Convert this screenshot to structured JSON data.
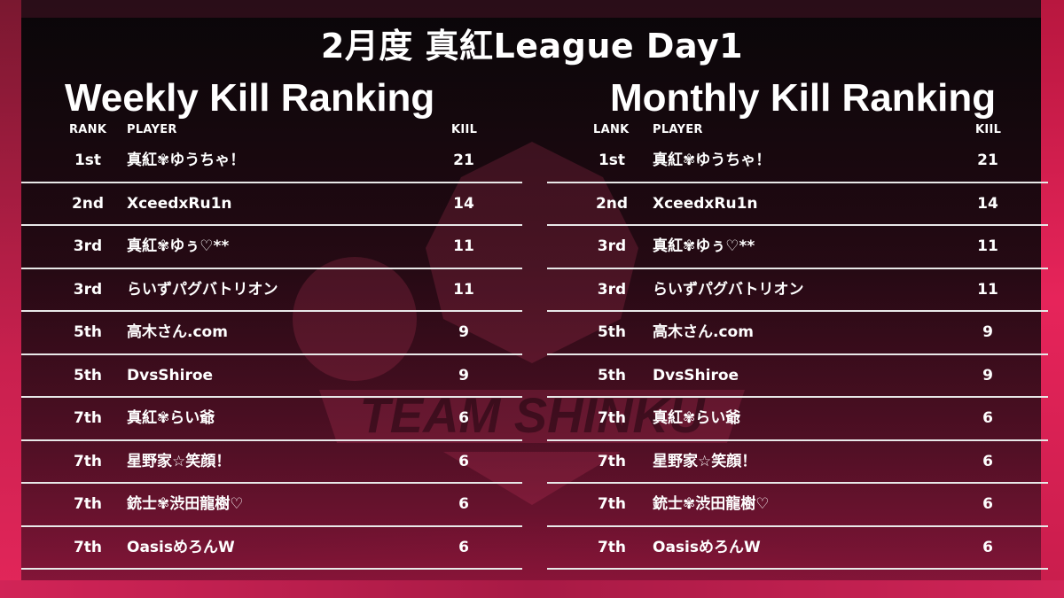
{
  "title": "2月度 真紅League Day1",
  "weekly": {
    "title": "Weekly Kill Ranking",
    "headers": {
      "rank": "RANK",
      "player": "PLAYER",
      "kill": "KIIL"
    },
    "rows": [
      {
        "rank": "1st",
        "player": "真紅✾ゆうちゃ！",
        "kill": "21"
      },
      {
        "rank": "2nd",
        "player": "XceedxRu1n",
        "kill": "14"
      },
      {
        "rank": "3rd",
        "player": "真紅✾ゆぅ♡**",
        "kill": "11"
      },
      {
        "rank": "3rd",
        "player": "らいずパグバトリオン",
        "kill": "11"
      },
      {
        "rank": "5th",
        "player": "高木さん.com",
        "kill": "9"
      },
      {
        "rank": "5th",
        "player": "DvsShiroe",
        "kill": "9"
      },
      {
        "rank": "7th",
        "player": "真紅✾らい爺",
        "kill": "6"
      },
      {
        "rank": "7th",
        "player": "星野家☆笑顔！",
        "kill": "6"
      },
      {
        "rank": "7th",
        "player": "銃士✾渋田龍樹♡",
        "kill": "6"
      },
      {
        "rank": "7th",
        "player": "OasisめろんW",
        "kill": "6"
      }
    ]
  },
  "monthly": {
    "title": "Monthly Kill Ranking",
    "headers": {
      "rank": "LANK",
      "player": "PLAYER",
      "kill": "KIIL"
    },
    "rows": [
      {
        "rank": "1st",
        "player": "真紅✾ゆうちゃ！",
        "kill": "21"
      },
      {
        "rank": "2nd",
        "player": "XceedxRu1n",
        "kill": "14"
      },
      {
        "rank": "3rd",
        "player": "真紅✾ゆぅ♡**",
        "kill": "11"
      },
      {
        "rank": "3rd",
        "player": "らいずパグバトリオン",
        "kill": "11"
      },
      {
        "rank": "5th",
        "player": "高木さん.com",
        "kill": "9"
      },
      {
        "rank": "5th",
        "player": "DvsShiroe",
        "kill": "9"
      },
      {
        "rank": "7th",
        "player": "真紅✾らい爺",
        "kill": "6"
      },
      {
        "rank": "7th",
        "player": "星野家☆笑顔！",
        "kill": "6"
      },
      {
        "rank": "7th",
        "player": "銃士✾渋田龍樹♡",
        "kill": "6"
      },
      {
        "rank": "7th",
        "player": "OasisめろんW",
        "kill": "6"
      }
    ]
  },
  "watermark": {
    "text": "TEAM SHINKU",
    "icon": "tiger-crest-logo"
  },
  "colors": {
    "accent": "#e3265a",
    "divider": "#e8e8e8"
  }
}
